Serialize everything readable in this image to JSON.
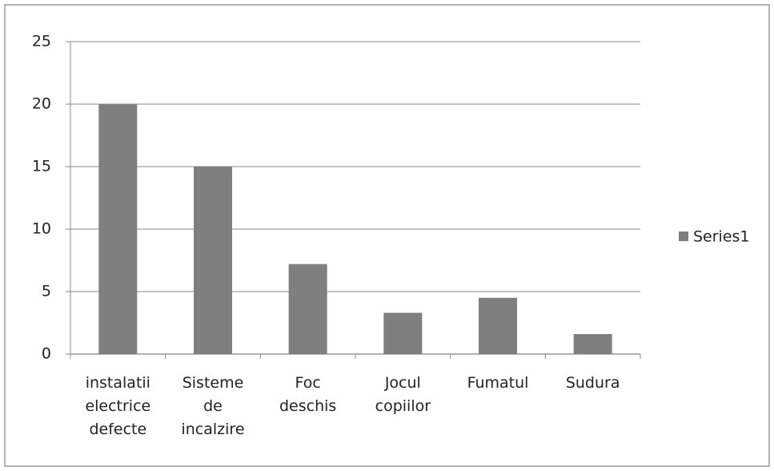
{
  "chart_data": {
    "type": "bar",
    "categories": [
      "instalatii electrice defecte",
      "Sisteme de incalzire",
      "Foc deschis",
      "Jocul copiilor",
      "Fumatul",
      "Sudura"
    ],
    "series": [
      {
        "name": "Series1",
        "color": "#7f7f7f",
        "values": [
          20,
          15,
          7.2,
          3.3,
          4.5,
          1.6
        ]
      }
    ],
    "ylim": [
      0,
      25
    ],
    "yticks": [
      0,
      5,
      10,
      15,
      20,
      25
    ],
    "grid": true,
    "legend": "right"
  }
}
